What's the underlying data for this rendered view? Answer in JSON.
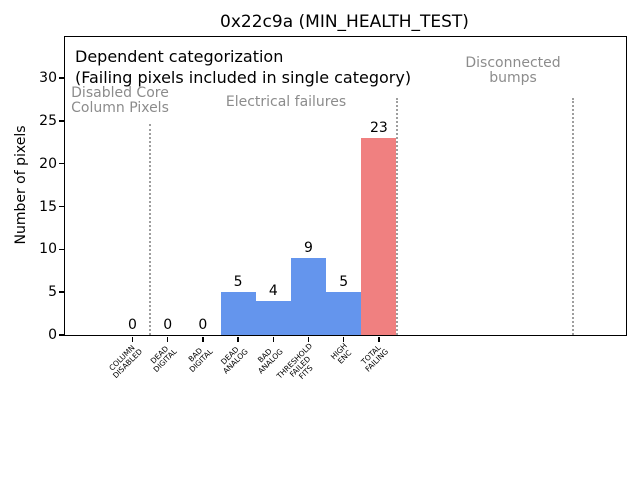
{
  "title": "0x22c9a (MIN_HEALTH_TEST)",
  "chart_data": {
    "type": "bar",
    "title": "0x22c9a (MIN_HEALTH_TEST)",
    "xlabel": "",
    "ylabel": "Number of pixels",
    "ylim": [
      0,
      34.8
    ],
    "yticks": [
      0,
      5,
      10,
      15,
      20,
      25,
      30
    ],
    "grid": false,
    "legend": null,
    "categories": [
      "COLUMN\nDISABLED",
      "DEAD\nDIGITAL",
      "BAD\nDIGITAL",
      "DEAD\nANALOG",
      "BAD\nANALOG",
      "THRESHOLD\nFAILED\nFITS",
      "HIGH\nENC",
      "TOTAL\nFAILING"
    ],
    "values": [
      0,
      0,
      0,
      5,
      4,
      9,
      5,
      23
    ],
    "value_labels": [
      "0",
      "0",
      "0",
      "5",
      "4",
      "9",
      "5",
      "23"
    ],
    "bar_colors": [
      "#6495ED",
      "#6495ED",
      "#6495ED",
      "#6495ED",
      "#6495ED",
      "#6495ED",
      "#6495ED",
      "#F08080"
    ],
    "separator_positions": [
      0.5,
      7.5,
      12.5
    ],
    "annotations": {
      "dependent": [
        "Dependent categorization",
        "(Failing pixels included in single category)"
      ],
      "disabled_core": [
        "Disabled Core",
        "Column Pixels"
      ],
      "electrical": "Electrical failures",
      "disconnected": [
        "Disconnected",
        "bumps"
      ]
    }
  },
  "colors": {
    "bar_blue": "#6495ED",
    "bar_red": "#F08080",
    "annotation_gray": "#8c8c8c",
    "separator_gray": "#9e9e9e"
  }
}
